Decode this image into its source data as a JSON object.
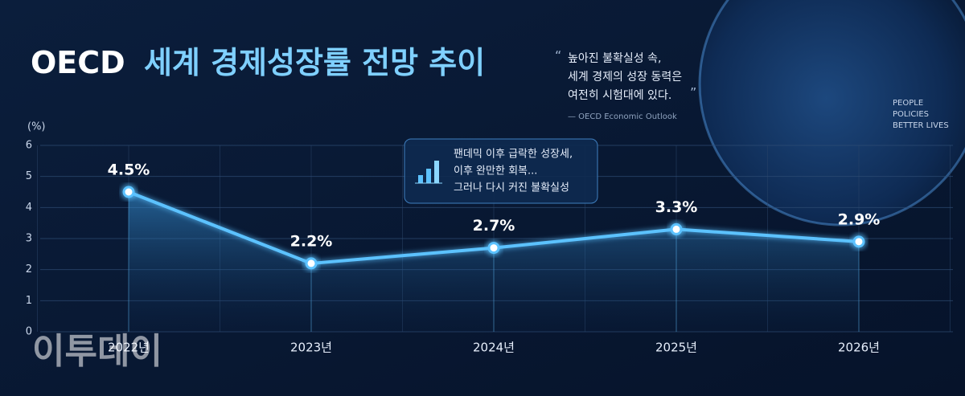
{
  "header": {
    "title": {
      "lead": "OECD",
      "main": "세계 경제성장률 전망 추이"
    }
  },
  "quote": {
    "open": "“",
    "lines": [
      "높아진 불확실성 속,",
      "세계 경제의 성장 동력은",
      "여전히 시험대에 있다."
    ],
    "close": "”",
    "source": "— OECD Economic Outlook"
  },
  "globe": {
    "lines": [
      "PEOPLE",
      "POLICIES",
      "BETTER LIVES"
    ]
  },
  "callout": {
    "lines": [
      "팬데믹 이후 급락한 성장세,",
      "이후 완만한 회복...",
      "그러나 다시 커진 불확실성"
    ]
  },
  "watermark": "이투데이",
  "chart_data": {
    "type": "line",
    "y_label": "(%)",
    "categories": [
      "2022년",
      "2023년",
      "2024년",
      "2025년",
      "2026년"
    ],
    "values": [
      4.5,
      2.2,
      2.7,
      3.3,
      2.9
    ],
    "value_labels": [
      "4.5%",
      "2.2%",
      "2.7%",
      "3.3%",
      "2.9%"
    ],
    "color": "#5cc2ff",
    "ylim": [
      0,
      6
    ],
    "yticks": [
      0,
      1,
      2,
      3,
      4,
      5,
      6
    ],
    "grid": true
  }
}
